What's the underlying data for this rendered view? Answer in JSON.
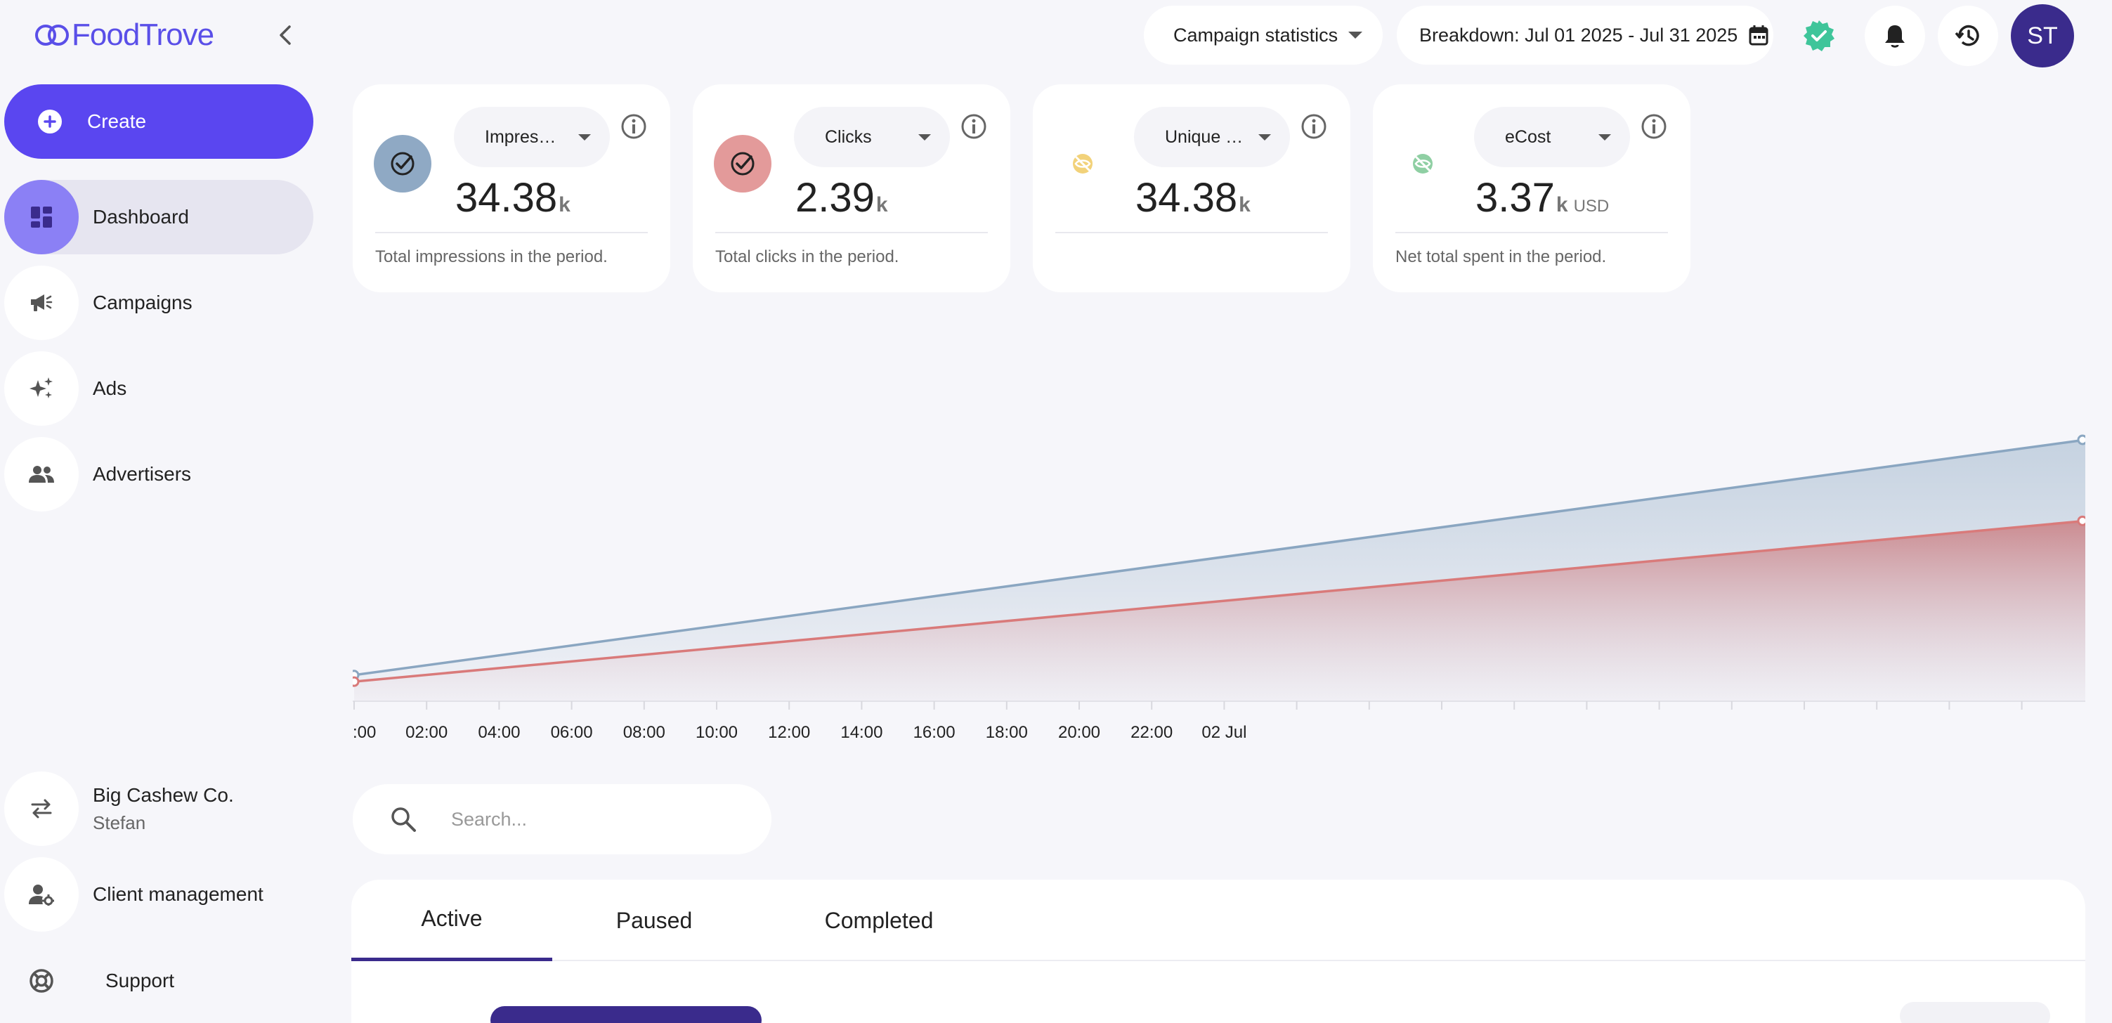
{
  "app": {
    "brand": "FoodTrove"
  },
  "sidebar": {
    "create_label": "Create",
    "items": [
      {
        "label": "Dashboard",
        "active": true
      },
      {
        "label": "Campaigns",
        "active": false
      },
      {
        "label": "Ads",
        "active": false
      },
      {
        "label": "Advertisers",
        "active": false
      }
    ],
    "account": {
      "name": "Big Cashew Co.",
      "user": "Stefan"
    },
    "client_management": "Client management",
    "support": "Support"
  },
  "header": {
    "view_select": "Campaign statistics",
    "breakdown": "Breakdown: Jul 01 2025 - Jul 31 2025",
    "avatar_initials": "ST"
  },
  "cards": [
    {
      "metric": "Impressions",
      "value": "34.38",
      "unit": "k",
      "currency": "",
      "description": "Total impressions in the period.",
      "color": "#8fa9c4",
      "enabled": true
    },
    {
      "metric": "Clicks",
      "value": "2.39",
      "unit": "k",
      "currency": "",
      "description": "Total clicks in the period.",
      "color": "#e39a9a",
      "enabled": true
    },
    {
      "metric": "Unique Impressions",
      "value": "34.38",
      "unit": "k",
      "currency": "",
      "description": "",
      "color": "#f2d27a",
      "enabled": false
    },
    {
      "metric": "eCost",
      "value": "3.37",
      "unit": "k",
      "currency": "USD",
      "description": "Net total spent in the period.",
      "color": "#8fcfa3",
      "enabled": false
    }
  ],
  "chart_data": {
    "type": "area",
    "x": [
      ":00",
      "02:00",
      "04:00",
      "06:00",
      "08:00",
      "10:00",
      "12:00",
      "14:00",
      "16:00",
      "18:00",
      "20:00",
      "22:00",
      "02 Jul"
    ],
    "series": [
      {
        "name": "Impressions",
        "color": "#8aa6c1",
        "start": 0.1,
        "end": 1.0
      },
      {
        "name": "Clicks",
        "color": "#d97a7a",
        "start": 0.075,
        "end": 0.69
      }
    ],
    "grid": false
  },
  "search": {
    "placeholder": "Search..."
  },
  "tabs": [
    {
      "label": "Active",
      "active": true
    },
    {
      "label": "Paused",
      "active": false
    },
    {
      "label": "Completed",
      "active": false
    }
  ]
}
